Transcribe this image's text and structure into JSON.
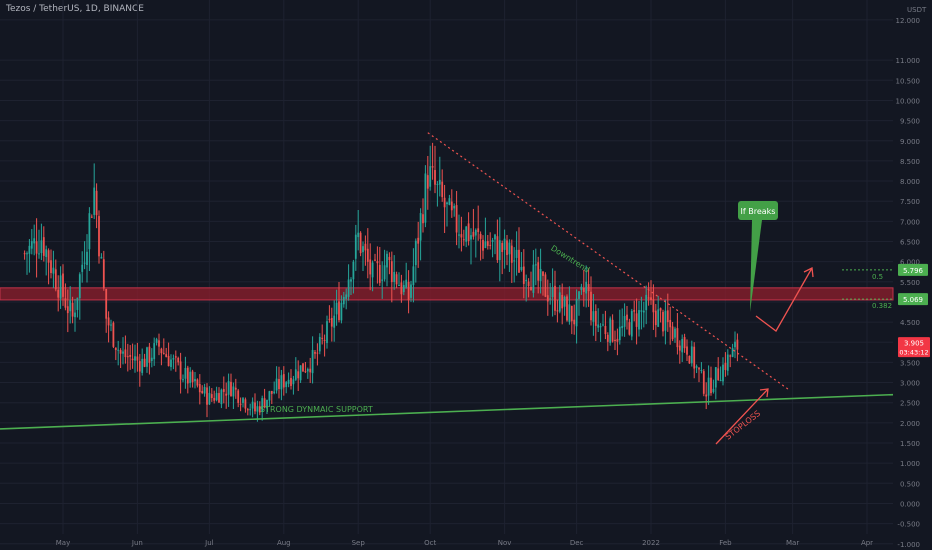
{
  "header": {
    "symbol_line": "Tezos / TetherUS, 1D, BINANCE"
  },
  "colors": {
    "background": "#131722",
    "up_candle": "#26a69a",
    "down_candle": "#ef5350",
    "grid": "#1e2230",
    "axis_text": "#787b86",
    "support_line": "#4caf50",
    "downtrend_line": "#ef5350",
    "resistance_zone": "#8b1e2b",
    "price_label": "#f23645",
    "fib_label": "#4caf50",
    "arrow": "#ef5350"
  },
  "annotations": {
    "downtrend": "Downtrend",
    "support": "STRONG DYNMAIC SUPPORT",
    "stoploss": "STOPLOSS",
    "if_breaks": "If Breaks",
    "fib_05_ratio": "0.5",
    "fib_05_price": "5.796",
    "fib_0382_ratio": "0.382",
    "fib_0382_price": "5.069",
    "last_price": "3.905",
    "countdown": "03:43:12"
  },
  "chart_data": {
    "type": "candlestick",
    "title": "Tezos / TetherUS, 1D, BINANCE",
    "y_axis_unit": "USDT",
    "ylim": [
      -1.2,
      12.8
    ],
    "y_ticks": [
      "12.000",
      "11.000",
      "10.500",
      "10.000",
      "9.500",
      "9.000",
      "8.500",
      "8.000",
      "7.500",
      "7.000",
      "6.500",
      "6.000",
      "5.500",
      "5.000",
      "4.500",
      "4.000",
      "3.500",
      "3.000",
      "2.500",
      "2.000",
      "1.500",
      "1.000",
      "0.500",
      "0.000",
      "-0.500",
      "-1.000"
    ],
    "x_ticks": [
      "May",
      "Jun",
      "Jul",
      "Aug",
      "Sep",
      "Oct",
      "Nov",
      "Dec",
      "2022",
      "Feb",
      "Mar",
      "Apr"
    ],
    "grid": true,
    "price_path": [
      {
        "date": "2021-04-15",
        "close": 6.2
      },
      {
        "date": "2021-04-22",
        "close": 6.6
      },
      {
        "date": "2021-04-28",
        "close": 5.6
      },
      {
        "date": "2021-05-05",
        "close": 4.6
      },
      {
        "date": "2021-05-10",
        "close": 6.3
      },
      {
        "date": "2021-05-14",
        "close": 7.8
      },
      {
        "date": "2021-05-19",
        "close": 4.6
      },
      {
        "date": "2021-05-25",
        "close": 3.7
      },
      {
        "date": "2021-06-03",
        "close": 3.5
      },
      {
        "date": "2021-06-10",
        "close": 3.9
      },
      {
        "date": "2021-06-20",
        "close": 3.2
      },
      {
        "date": "2021-07-01",
        "close": 2.6
      },
      {
        "date": "2021-07-10",
        "close": 2.9
      },
      {
        "date": "2021-07-20",
        "close": 2.3
      },
      {
        "date": "2021-07-31",
        "close": 3.0
      },
      {
        "date": "2021-08-14",
        "close": 3.6
      },
      {
        "date": "2021-08-25",
        "close": 5.0
      },
      {
        "date": "2021-09-01",
        "close": 6.6
      },
      {
        "date": "2021-09-07",
        "close": 5.6
      },
      {
        "date": "2021-09-13",
        "close": 6.0
      },
      {
        "date": "2021-09-22",
        "close": 5.1
      },
      {
        "date": "2021-09-30",
        "close": 8.2
      },
      {
        "date": "2021-10-10",
        "close": 7.0
      },
      {
        "date": "2021-10-20",
        "close": 6.6
      },
      {
        "date": "2021-10-31",
        "close": 6.3
      },
      {
        "date": "2021-11-10",
        "close": 5.8
      },
      {
        "date": "2021-11-20",
        "close": 5.2
      },
      {
        "date": "2021-11-30",
        "close": 4.6
      },
      {
        "date": "2021-12-05",
        "close": 5.4
      },
      {
        "date": "2021-12-08",
        "close": 4.5
      },
      {
        "date": "2021-12-18",
        "close": 4.2
      },
      {
        "date": "2021-12-31",
        "close": 4.9
      },
      {
        "date": "2022-01-08",
        "close": 4.4
      },
      {
        "date": "2022-01-16",
        "close": 3.9
      },
      {
        "date": "2022-01-24",
        "close": 2.8
      },
      {
        "date": "2022-01-31",
        "close": 3.4
      },
      {
        "date": "2022-02-06",
        "close": 3.9
      }
    ],
    "resistance_zone": {
      "low": 5.05,
      "high": 5.35
    },
    "support_line": {
      "start": {
        "date": "2021-04-01",
        "price": 1.85
      },
      "end": {
        "date": "2022-04-30",
        "price": 2.7
      }
    },
    "downtrend_line": {
      "start": {
        "date": "2021-09-30",
        "price": 9.2
      },
      "end": {
        "date": "2022-02-28",
        "price": 2.8
      }
    },
    "fib_levels": [
      {
        "ratio": "0.5",
        "price": 5.796
      },
      {
        "ratio": "0.382",
        "price": 5.069
      }
    ],
    "last_price": 3.905
  }
}
